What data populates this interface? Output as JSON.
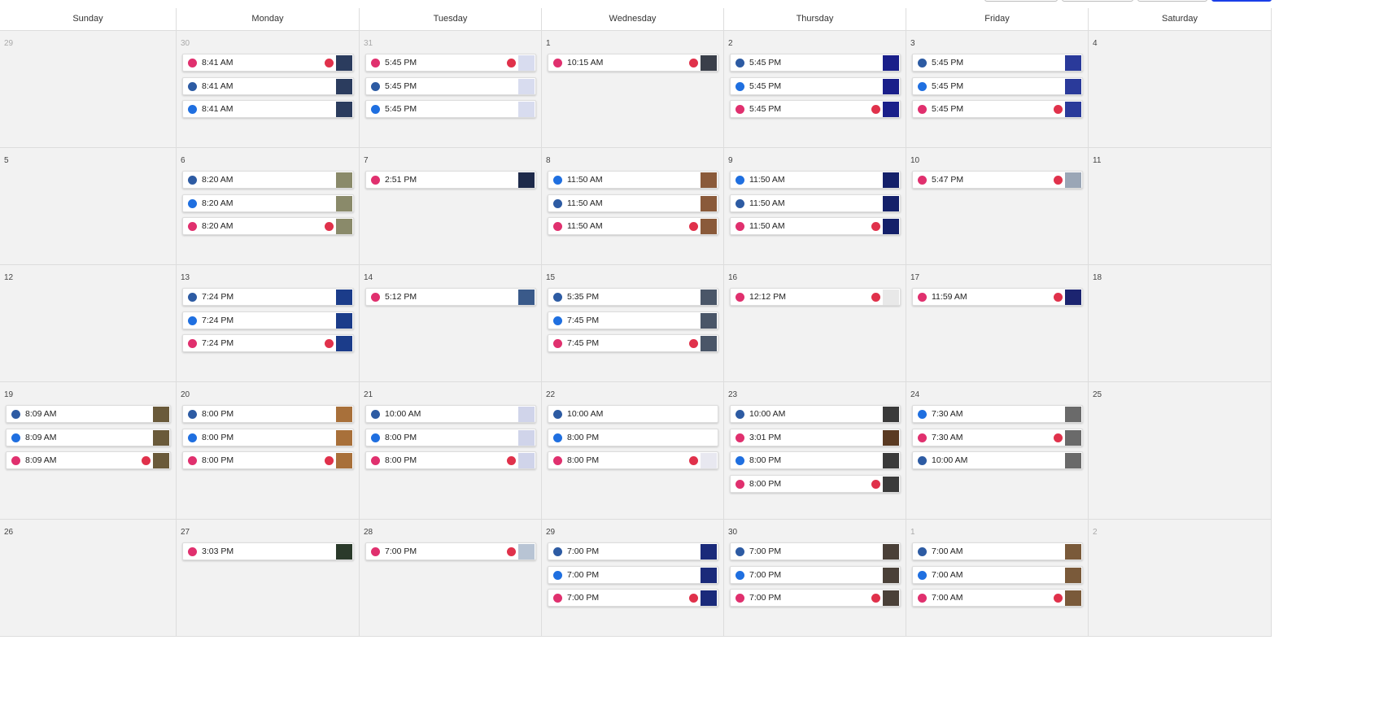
{
  "weekdays": [
    "Sunday",
    "Monday",
    "Tuesday",
    "Wednesday",
    "Thursday",
    "Friday",
    "Saturday"
  ],
  "weeks": [
    {
      "days": [
        {
          "day": "29",
          "muted": true,
          "posts": []
        },
        {
          "day": "30",
          "muted": true,
          "posts": [
            {
              "time": "8:41 AM",
              "network": "#e0306e",
              "alert": true,
              "thumb": "#2b3c5e"
            },
            {
              "time": "8:41 AM",
              "network": "#2d5ba3",
              "alert": false,
              "thumb": "#2b3c5e"
            },
            {
              "time": "8:41 AM",
              "network": "#1f6fe0",
              "alert": false,
              "thumb": "#2b3c5e"
            }
          ]
        },
        {
          "day": "31",
          "muted": true,
          "posts": [
            {
              "time": "5:45 PM",
              "network": "#e0306e",
              "alert": true,
              "thumb": "#d8dcef"
            },
            {
              "time": "5:45 PM",
              "network": "#2d5ba3",
              "alert": false,
              "thumb": "#d8dcef"
            },
            {
              "time": "5:45 PM",
              "network": "#1f6fe0",
              "alert": false,
              "thumb": "#d8dcef"
            }
          ]
        },
        {
          "day": "1",
          "muted": false,
          "posts": [
            {
              "time": "10:15 AM",
              "network": "#e0306e",
              "alert": true,
              "thumb": "#3a3f4a"
            }
          ]
        },
        {
          "day": "2",
          "muted": false,
          "posts": [
            {
              "time": "5:45 PM",
              "network": "#2d5ba3",
              "alert": false,
              "thumb": "#1a1f8a"
            },
            {
              "time": "5:45 PM",
              "network": "#1f6fe0",
              "alert": false,
              "thumb": "#1a1f8a"
            },
            {
              "time": "5:45 PM",
              "network": "#e0306e",
              "alert": true,
              "thumb": "#1a1f8a"
            }
          ]
        },
        {
          "day": "3",
          "muted": false,
          "posts": [
            {
              "time": "5:45 PM",
              "network": "#2d5ba3",
              "alert": false,
              "thumb": "#2a3a9a"
            },
            {
              "time": "5:45 PM",
              "network": "#1f6fe0",
              "alert": false,
              "thumb": "#2a3a9a"
            },
            {
              "time": "5:45 PM",
              "network": "#e0306e",
              "alert": true,
              "thumb": "#2a3a9a"
            }
          ]
        },
        {
          "day": "4",
          "muted": false,
          "posts": []
        }
      ]
    },
    {
      "days": [
        {
          "day": "5",
          "muted": false,
          "posts": []
        },
        {
          "day": "6",
          "muted": false,
          "posts": [
            {
              "time": "8:20 AM",
              "network": "#2d5ba3",
              "alert": false,
              "thumb": "#8a8a6a"
            },
            {
              "time": "8:20 AM",
              "network": "#1f6fe0",
              "alert": false,
              "thumb": "#8a8a6a"
            },
            {
              "time": "8:20 AM",
              "network": "#e0306e",
              "alert": true,
              "thumb": "#8a8a6a"
            }
          ]
        },
        {
          "day": "7",
          "muted": false,
          "posts": [
            {
              "time": "2:51 PM",
              "network": "#e0306e",
              "alert": false,
              "thumb": "#1e2a4a"
            }
          ]
        },
        {
          "day": "8",
          "muted": false,
          "posts": [
            {
              "time": "11:50 AM",
              "network": "#1f6fe0",
              "alert": false,
              "thumb": "#8a5a3a"
            },
            {
              "time": "11:50 AM",
              "network": "#2d5ba3",
              "alert": false,
              "thumb": "#8a5a3a"
            },
            {
              "time": "11:50 AM",
              "network": "#e0306e",
              "alert": true,
              "thumb": "#8a5a3a"
            }
          ]
        },
        {
          "day": "9",
          "muted": false,
          "posts": [
            {
              "time": "11:50 AM",
              "network": "#1f6fe0",
              "alert": false,
              "thumb": "#14206a"
            },
            {
              "time": "11:50 AM",
              "network": "#2d5ba3",
              "alert": false,
              "thumb": "#14206a"
            },
            {
              "time": "11:50 AM",
              "network": "#e0306e",
              "alert": true,
              "thumb": "#14206a"
            }
          ]
        },
        {
          "day": "10",
          "muted": false,
          "posts": [
            {
              "time": "5:47 PM",
              "network": "#e0306e",
              "alert": true,
              "thumb": "#9aa6b6"
            }
          ]
        },
        {
          "day": "11",
          "muted": false,
          "posts": []
        }
      ]
    },
    {
      "days": [
        {
          "day": "12",
          "muted": false,
          "posts": []
        },
        {
          "day": "13",
          "muted": false,
          "posts": [
            {
              "time": "7:24 PM",
              "network": "#2d5ba3",
              "alert": false,
              "thumb": "#1b3c8a"
            },
            {
              "time": "7:24 PM",
              "network": "#1f6fe0",
              "alert": false,
              "thumb": "#1b3c8a"
            },
            {
              "time": "7:24 PM",
              "network": "#e0306e",
              "alert": true,
              "thumb": "#1b3c8a"
            }
          ]
        },
        {
          "day": "14",
          "muted": false,
          "posts": [
            {
              "time": "5:12 PM",
              "network": "#e0306e",
              "alert": false,
              "thumb": "#3a5a8a"
            }
          ]
        },
        {
          "day": "15",
          "muted": false,
          "posts": [
            {
              "time": "5:35 PM",
              "network": "#2d5ba3",
              "alert": false,
              "thumb": "#4a5668"
            },
            {
              "time": "7:45 PM",
              "network": "#1f6fe0",
              "alert": false,
              "thumb": "#4a5668"
            },
            {
              "time": "7:45 PM",
              "network": "#e0306e",
              "alert": true,
              "thumb": "#4a5668"
            }
          ]
        },
        {
          "day": "16",
          "muted": false,
          "posts": [
            {
              "time": "12:12 PM",
              "network": "#e0306e",
              "alert": true,
              "thumb": "#e8e8e8"
            }
          ]
        },
        {
          "day": "17",
          "muted": false,
          "posts": [
            {
              "time": "11:59 AM",
              "network": "#e0306e",
              "alert": true,
              "thumb": "#1c2470"
            }
          ]
        },
        {
          "day": "18",
          "muted": false,
          "posts": []
        }
      ]
    },
    {
      "days": [
        {
          "day": "19",
          "muted": false,
          "posts": [
            {
              "time": "8:09 AM",
              "network": "#2d5ba3",
              "alert": false,
              "thumb": "#6a5a3a"
            },
            {
              "time": "8:09 AM",
              "network": "#1f6fe0",
              "alert": false,
              "thumb": "#6a5a3a"
            },
            {
              "time": "8:09 AM",
              "network": "#e0306e",
              "alert": true,
              "thumb": "#6a5a3a"
            }
          ]
        },
        {
          "day": "20",
          "muted": false,
          "posts": [
            {
              "time": "8:00 PM",
              "network": "#2d5ba3",
              "alert": false,
              "thumb": "#a8703a"
            },
            {
              "time": "8:00 PM",
              "network": "#1f6fe0",
              "alert": false,
              "thumb": "#a8703a"
            },
            {
              "time": "8:00 PM",
              "network": "#e0306e",
              "alert": true,
              "thumb": "#a8703a"
            }
          ]
        },
        {
          "day": "21",
          "muted": false,
          "posts": [
            {
              "time": "10:00 AM",
              "network": "#2d5ba3",
              "alert": false,
              "thumb": "#d0d4ea"
            },
            {
              "time": "8:00 PM",
              "network": "#1f6fe0",
              "alert": false,
              "thumb": "#d0d4ea"
            },
            {
              "time": "8:00 PM",
              "network": "#e0306e",
              "alert": true,
              "thumb": "#d0d4ea"
            }
          ]
        },
        {
          "day": "22",
          "muted": false,
          "posts": [
            {
              "time": "10:00 AM",
              "network": "#2d5ba3",
              "alert": false,
              "thumb": null
            },
            {
              "time": "8:00 PM",
              "network": "#1f6fe0",
              "alert": false,
              "thumb": null
            },
            {
              "time": "8:00 PM",
              "network": "#e0306e",
              "alert": true,
              "thumb": "#e8e8f0"
            }
          ]
        },
        {
          "day": "23",
          "muted": false,
          "posts": [
            {
              "time": "10:00 AM",
              "network": "#2d5ba3",
              "alert": false,
              "thumb": "#3a3a3a"
            },
            {
              "time": "3:01 PM",
              "network": "#e0306e",
              "alert": false,
              "thumb": "#5a3a22"
            },
            {
              "time": "8:00 PM",
              "network": "#1f6fe0",
              "alert": false,
              "thumb": "#3a3a3a"
            },
            {
              "time": "8:00 PM",
              "network": "#e0306e",
              "alert": true,
              "thumb": "#3a3a3a"
            }
          ]
        },
        {
          "day": "24",
          "muted": false,
          "posts": [
            {
              "time": "7:30 AM",
              "network": "#1f6fe0",
              "alert": false,
              "thumb": "#6a6a6a"
            },
            {
              "time": "7:30 AM",
              "network": "#e0306e",
              "alert": true,
              "thumb": "#6a6a6a"
            },
            {
              "time": "10:00 AM",
              "network": "#2d5ba3",
              "alert": false,
              "thumb": "#6a6a6a"
            }
          ]
        },
        {
          "day": "25",
          "muted": false,
          "posts": []
        }
      ]
    },
    {
      "days": [
        {
          "day": "26",
          "muted": false,
          "posts": []
        },
        {
          "day": "27",
          "muted": false,
          "posts": [
            {
              "time": "3:03 PM",
              "network": "#e0306e",
              "alert": false,
              "thumb": "#2a3a2a"
            }
          ]
        },
        {
          "day": "28",
          "muted": false,
          "posts": [
            {
              "time": "7:00 PM",
              "network": "#e0306e",
              "alert": true,
              "thumb": "#b8c4d4"
            }
          ]
        },
        {
          "day": "29",
          "muted": false,
          "posts": [
            {
              "time": "7:00 PM",
              "network": "#2d5ba3",
              "alert": false,
              "thumb": "#1a2a7a"
            },
            {
              "time": "7:00 PM",
              "network": "#1f6fe0",
              "alert": false,
              "thumb": "#1a2a7a"
            },
            {
              "time": "7:00 PM",
              "network": "#e0306e",
              "alert": true,
              "thumb": "#1a2a7a"
            }
          ]
        },
        {
          "day": "30",
          "muted": false,
          "posts": [
            {
              "time": "7:00 PM",
              "network": "#2d5ba3",
              "alert": false,
              "thumb": "#4a4038"
            },
            {
              "time": "7:00 PM",
              "network": "#1f6fe0",
              "alert": false,
              "thumb": "#4a4038"
            },
            {
              "time": "7:00 PM",
              "network": "#e0306e",
              "alert": true,
              "thumb": "#4a4038"
            }
          ]
        },
        {
          "day": "1",
          "muted": true,
          "posts": [
            {
              "time": "7:00 AM",
              "network": "#2d5ba3",
              "alert": false,
              "thumb": "#7a5a3a"
            },
            {
              "time": "7:00 AM",
              "network": "#1f6fe0",
              "alert": false,
              "thumb": "#7a5a3a"
            },
            {
              "time": "7:00 AM",
              "network": "#e0306e",
              "alert": true,
              "thumb": "#7a5a3a"
            }
          ]
        },
        {
          "day": "2",
          "muted": true,
          "posts": []
        }
      ]
    }
  ]
}
